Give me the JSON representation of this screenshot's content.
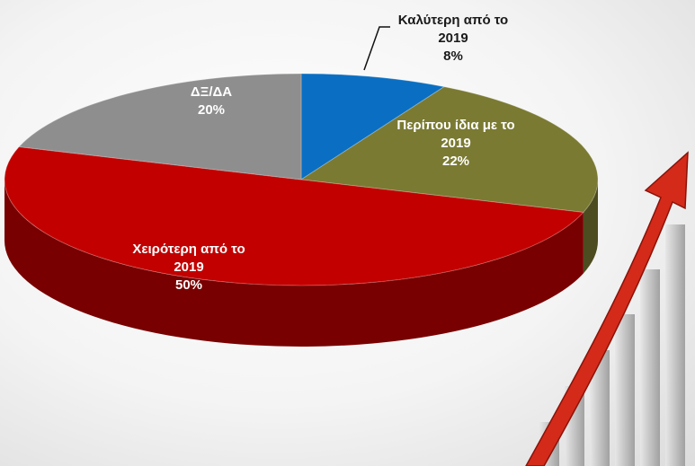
{
  "chart_data": {
    "type": "pie",
    "categories": [
      "Καλύτερη από το 2019",
      "Περίπου ίδια με το 2019",
      "Χειρότερη από το 2019",
      "ΔΞ/ΔΑ"
    ],
    "values": [
      8,
      22,
      50,
      20
    ],
    "value_labels": [
      "8%",
      "22%",
      "50%",
      "20%"
    ],
    "colors": [
      "#0a6fc2",
      "#7a7a33",
      "#c20000",
      "#8e8e8e"
    ]
  }
}
